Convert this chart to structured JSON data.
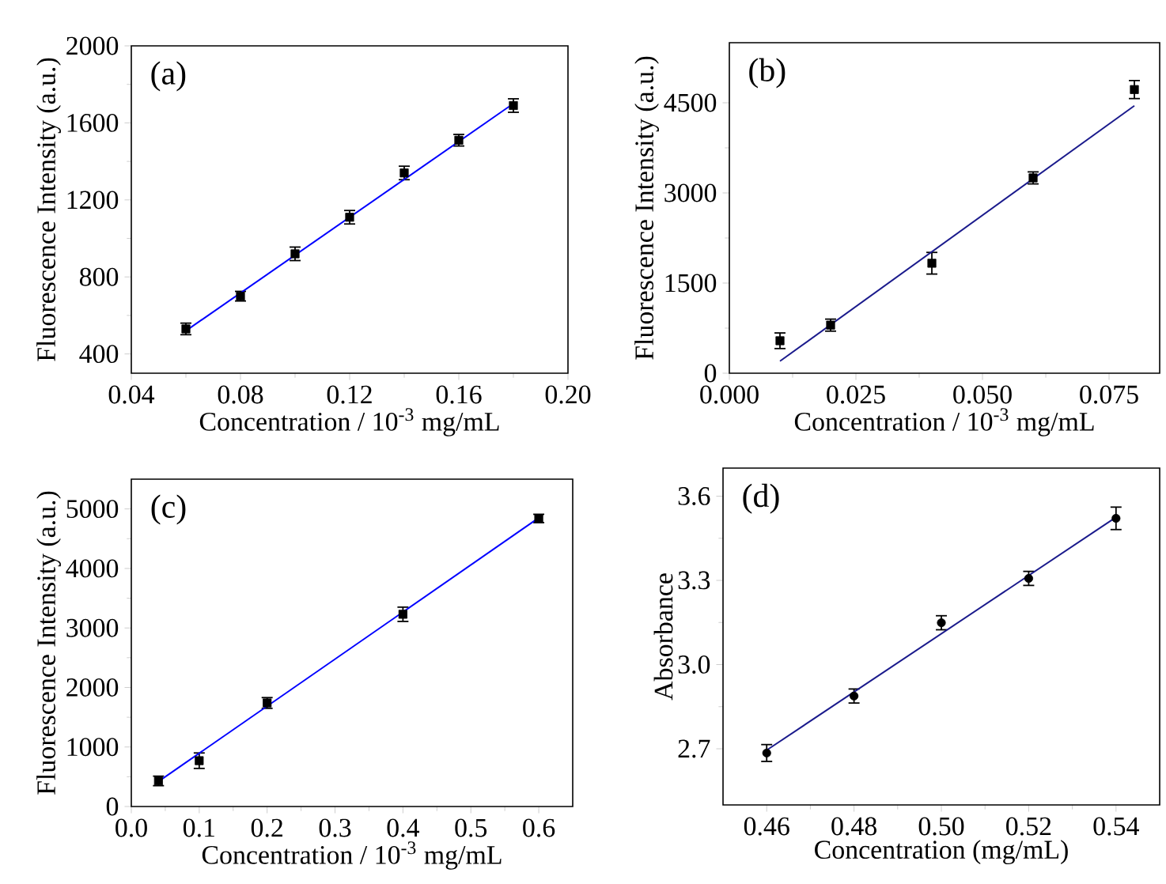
{
  "chart_data": [
    {
      "type": "scatter",
      "xlabel": "Concentration / 10$^{-3}$ mg/mL",
      "ylabel": "Fluorescence Intensity (a.u.)",
      "annotations": [
        "(a)"
      ],
      "xlim": [
        0.04,
        0.2
      ],
      "ylim": [
        300,
        2000
      ],
      "xticks": [
        0.04,
        0.08,
        0.12,
        0.16,
        {
          "value": 0.2,
          "label": "0.20"
        }
      ],
      "yticks": [
        400,
        800,
        1200,
        1600,
        2000
      ],
      "series": [
        {
          "color": "#000000",
          "marker": "square",
          "x": [
            0.06,
            0.08,
            0.1,
            0.12,
            0.14,
            0.16,
            0.18
          ],
          "values": [
            530,
            700,
            920,
            1110,
            1340,
            1510,
            1690
          ],
          "errors": [
            30,
            25,
            35,
            35,
            35,
            30,
            35
          ]
        },
        {
          "type": "line",
          "color": "#0000ff",
          "x": [
            0.06,
            0.18
          ],
          "values": [
            520,
            1700
          ]
        }
      ]
    },
    {
      "type": "scatter",
      "xlabel": "Concentration / 10$^{-3}$ mg/mL",
      "ylabel": "Fluorescence Intensity (a.u.)",
      "annotations": [
        "(b)"
      ],
      "xlim": [
        0,
        0.085
      ],
      "ylim": [
        0,
        5500
      ],
      "xticks": [
        {
          "value": 0,
          "label": "0.000"
        },
        0.025,
        {
          "value": 0.05,
          "label": "0.050"
        },
        0.075
      ],
      "yticks": [
        0,
        1500,
        3000,
        4500
      ],
      "series": [
        {
          "color": "#000000",
          "marker": "square",
          "x": [
            0.01,
            0.02,
            0.04,
            0.06,
            0.08
          ],
          "values": [
            540,
            800,
            1830,
            3250,
            4720
          ],
          "errors": [
            130,
            100,
            180,
            100,
            150
          ]
        },
        {
          "type": "line",
          "color": "#1a1a8c",
          "x": [
            0.01,
            0.08
          ],
          "values": [
            200,
            4450
          ]
        }
      ]
    },
    {
      "type": "scatter",
      "xlabel": "Concentration / 10$^{-3}$ mg/mL",
      "ylabel": "Fluorescence Intensity (a.u.)",
      "annotations": [
        "(c)"
      ],
      "xlim": [
        0,
        0.65
      ],
      "ylim": [
        0,
        5500
      ],
      "xticks": [
        {
          "value": 0,
          "label": "0.0"
        },
        0.1,
        0.2,
        0.3,
        0.4,
        0.5,
        0.6
      ],
      "yticks": [
        0,
        1000,
        2000,
        3000,
        4000,
        5000
      ],
      "series": [
        {
          "color": "#000000",
          "marker": "square",
          "x": [
            0.04,
            0.1,
            0.2,
            0.4,
            0.6
          ],
          "values": [
            430,
            770,
            1740,
            3230,
            4840
          ],
          "errors": [
            80,
            130,
            90,
            120,
            70
          ]
        },
        {
          "type": "line",
          "color": "#0000ff",
          "x": [
            0.04,
            0.6
          ],
          "values": [
            420,
            4850
          ]
        }
      ]
    },
    {
      "type": "scatter",
      "xlabel": "Concentration (mg/mL)",
      "ylabel": "Absorbance",
      "annotations": [
        "(d)"
      ],
      "xlim": [
        0.45,
        0.55
      ],
      "ylim": [
        2.5,
        3.7
      ],
      "xticks": [
        0.46,
        0.48,
        {
          "value": 0.5,
          "label": "0.50"
        },
        0.52,
        0.54
      ],
      "yticks": [
        2.7,
        {
          "value": 3,
          "label": "3.0"
        },
        3.3,
        3.6
      ],
      "series": [
        {
          "color": "#000000",
          "marker": "circle",
          "x": [
            0.46,
            0.48,
            0.5,
            0.52,
            0.54
          ],
          "values": [
            2.685,
            2.888,
            3.149,
            3.307,
            3.521
          ],
          "errors": [
            0.03,
            0.025,
            0.025,
            0.025,
            0.04
          ]
        },
        {
          "type": "line",
          "color": "#1a1a8c",
          "x": [
            0.46,
            0.54
          ],
          "values": [
            2.695,
            3.525
          ]
        }
      ]
    }
  ]
}
